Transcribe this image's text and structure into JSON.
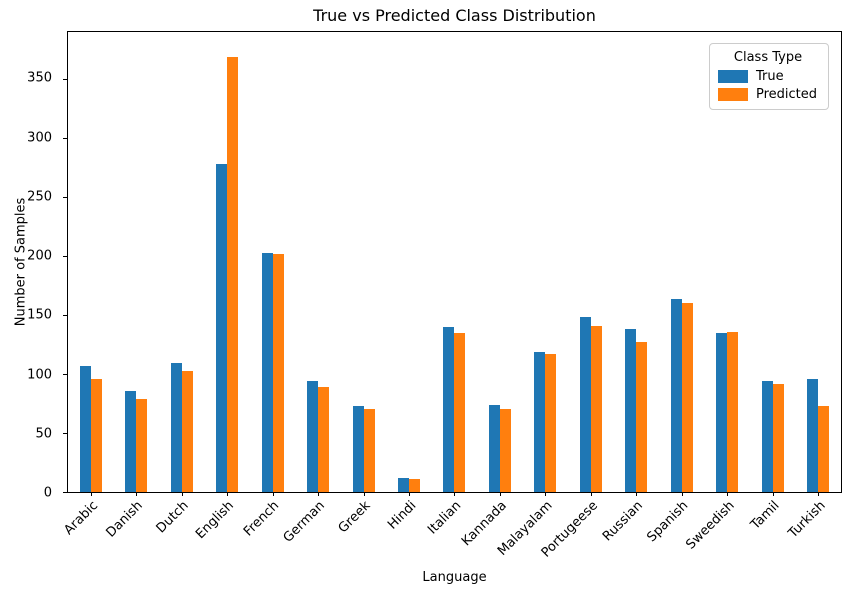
{
  "chart_data": {
    "type": "bar",
    "title": "True vs Predicted Class Distribution",
    "xlabel": "Language",
    "ylabel": "Number of Samples",
    "categories": [
      "Arabic",
      "Danish",
      "Dutch",
      "English",
      "French",
      "German",
      "Greek",
      "Hindi",
      "Italian",
      "Kannada",
      "Malayalam",
      "Portugeese",
      "Russian",
      "Spanish",
      "Sweedish",
      "Tamil",
      "Turkish"
    ],
    "series": [
      {
        "name": "True",
        "color": "#1f77b4",
        "values": [
          107,
          86,
          109,
          278,
          203,
          94,
          73,
          12,
          140,
          74,
          119,
          148,
          138,
          164,
          135,
          94,
          96
        ]
      },
      {
        "name": "Predicted",
        "color": "#ff7f0e",
        "values": [
          96,
          79,
          103,
          369,
          202,
          89,
          70,
          11,
          135,
          70,
          117,
          141,
          127,
          160,
          136,
          92,
          73
        ]
      }
    ],
    "ylim": [
      0,
      390
    ],
    "yticks": [
      0,
      50,
      100,
      150,
      200,
      250,
      300,
      350
    ],
    "grid": false,
    "xtick_rotation": 45,
    "legend": {
      "title": "Class Type",
      "position": "upper right"
    },
    "spine_color": "#000000",
    "legend_border_color": "#cccccc",
    "background_color": "#ffffff"
  }
}
